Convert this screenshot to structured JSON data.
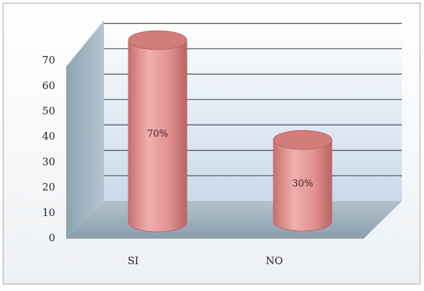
{
  "chart_data": {
    "type": "bar",
    "style": "3d-cylinder",
    "categories": [
      "SI",
      "NO"
    ],
    "values": [
      70,
      30
    ],
    "data_labels": [
      "70%",
      "30%"
    ],
    "yticks": [
      "0",
      "10",
      "20",
      "30",
      "40",
      "50",
      "60",
      "70"
    ],
    "ylim": [
      0,
      70
    ],
    "title": "",
    "xlabel": "",
    "ylabel": "",
    "grid": true,
    "legend": "none",
    "colors": {
      "bar": "#e39a9a",
      "bar_dark": "#c46d6d",
      "bar_top": "#d27c7c",
      "wall": "#d7e3ef",
      "side_wall": "#9fb2bf",
      "floor": "#98abb8",
      "grid": "#4f5c66"
    }
  }
}
